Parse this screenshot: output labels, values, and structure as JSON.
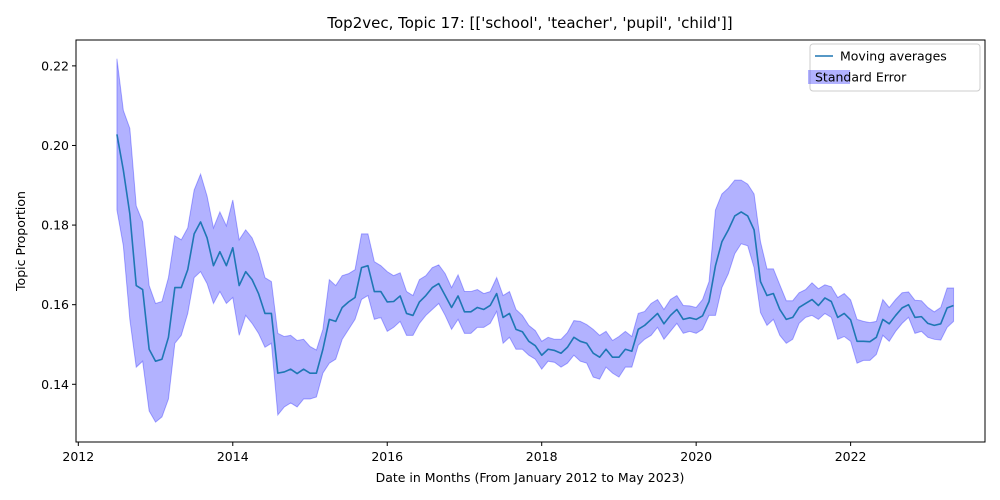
{
  "chart_data": {
    "type": "line",
    "title": "Top2vec, Topic 17: [['school', 'teacher', 'pupil', 'child']]",
    "xlabel": "Date in Months (From January 2012 to May 2023)",
    "ylabel": "Topic Proportion",
    "xlim": [
      2011.97,
      2023.74
    ],
    "ylim": [
      0.1255,
      0.2265
    ],
    "x_ticks": [
      2012,
      2014,
      2016,
      2018,
      2020,
      2022
    ],
    "y_ticks": [
      0.14,
      0.16,
      0.18,
      0.2,
      0.22
    ],
    "y_tick_labels": [
      "0.14",
      "0.16",
      "0.18",
      "0.20",
      "0.22"
    ],
    "legend_position": "top-right",
    "colors": {
      "line": "#1f77b4",
      "band": "#0000ff"
    },
    "series": [
      {
        "name": "Moving averages",
        "style": "line",
        "x": [
          2012.5,
          2012.583,
          2012.667,
          2012.75,
          2012.833,
          2012.917,
          2013.0,
          2013.083,
          2013.167,
          2013.25,
          2013.333,
          2013.417,
          2013.5,
          2013.583,
          2013.667,
          2013.75,
          2013.833,
          2013.917,
          2014.0,
          2014.083,
          2014.167,
          2014.25,
          2014.333,
          2014.417,
          2014.5,
          2014.583,
          2014.667,
          2014.75,
          2014.833,
          2014.917,
          2015.0,
          2015.083,
          2015.167,
          2015.25,
          2015.333,
          2015.417,
          2015.5,
          2015.583,
          2015.667,
          2015.75,
          2015.833,
          2015.917,
          2016.0,
          2016.083,
          2016.167,
          2016.25,
          2016.333,
          2016.417,
          2016.5,
          2016.583,
          2016.667,
          2016.75,
          2016.833,
          2016.917,
          2017.0,
          2017.083,
          2017.167,
          2017.25,
          2017.333,
          2017.417,
          2017.5,
          2017.583,
          2017.667,
          2017.75,
          2017.833,
          2017.917,
          2018.0,
          2018.083,
          2018.167,
          2018.25,
          2018.333,
          2018.417,
          2018.5,
          2018.583,
          2018.667,
          2018.75,
          2018.833,
          2018.917,
          2019.0,
          2019.083,
          2019.167,
          2019.25,
          2019.333,
          2019.417,
          2019.5,
          2019.583,
          2019.667,
          2019.75,
          2019.833,
          2019.917,
          2020.0,
          2020.083,
          2020.167,
          2020.25,
          2020.333,
          2020.417,
          2020.5,
          2020.583,
          2020.667,
          2020.75,
          2020.833,
          2020.917,
          2021.0,
          2021.083,
          2021.167,
          2021.25,
          2021.333,
          2021.417,
          2021.5,
          2021.583,
          2021.667,
          2021.75,
          2021.833,
          2021.917,
          2022.0,
          2022.083,
          2022.167,
          2022.25,
          2022.333,
          2022.417,
          2022.5,
          2022.583,
          2022.667,
          2022.75,
          2022.833,
          2022.917,
          2023.0,
          2023.083,
          2023.167,
          2023.25,
          2023.333
        ],
        "values": [
          0.2028,
          0.1938,
          0.1828,
          0.1648,
          0.1638,
          0.1488,
          0.1458,
          0.1463,
          0.1518,
          0.1643,
          0.1643,
          0.1688,
          0.1778,
          0.1808,
          0.1768,
          0.1698,
          0.1733,
          0.1698,
          0.1743,
          0.1648,
          0.1683,
          0.1663,
          0.1628,
          0.1578,
          0.1578,
          0.1428,
          0.1431,
          0.1438,
          0.1427,
          0.1438,
          0.1428,
          0.1428,
          0.1488,
          0.1563,
          0.1558,
          0.1593,
          0.1607,
          0.1618,
          0.1693,
          0.1698,
          0.1633,
          0.1633,
          0.1607,
          0.1608,
          0.1622,
          0.1578,
          0.1573,
          0.1607,
          0.1623,
          0.1643,
          0.1653,
          0.1623,
          0.1593,
          0.1622,
          0.1582,
          0.1582,
          0.1593,
          0.1588,
          0.1598,
          0.1628,
          0.1568,
          0.1578,
          0.1538,
          0.1532,
          0.1508,
          0.1497,
          0.1473,
          0.1488,
          0.1485,
          0.1478,
          0.1493,
          0.1518,
          0.1508,
          0.1503,
          0.1478,
          0.1468,
          0.1488,
          0.1468,
          0.1468,
          0.1488,
          0.1483,
          0.1538,
          0.1548,
          0.1563,
          0.1578,
          0.1552,
          0.1573,
          0.1588,
          0.1563,
          0.1567,
          0.1563,
          0.1572,
          0.1608,
          0.1698,
          0.1758,
          0.1788,
          0.1823,
          0.1833,
          0.1823,
          0.1788,
          0.1658,
          0.1623,
          0.1628,
          0.1588,
          0.1563,
          0.1568,
          0.1593,
          0.1603,
          0.1613,
          0.1598,
          0.1617,
          0.1608,
          0.1568,
          0.1578,
          0.1562,
          0.1508,
          0.1508,
          0.1507,
          0.1518,
          0.1563,
          0.1552,
          0.1573,
          0.1592,
          0.16,
          0.1568,
          0.157,
          0.1553,
          0.1548,
          0.1552,
          0.1592,
          0.1598
        ]
      },
      {
        "name": "Standard Error",
        "style": "band",
        "upper": [
          0.2218,
          0.2088,
          0.2043,
          0.1848,
          0.1808,
          0.1648,
          0.1603,
          0.1608,
          0.1668,
          0.1773,
          0.1763,
          0.1793,
          0.1888,
          0.1928,
          0.1873,
          0.1793,
          0.1833,
          0.1798,
          0.1863,
          0.1763,
          0.1788,
          0.1768,
          0.1728,
          0.1668,
          0.1658,
          0.1528,
          0.152,
          0.1523,
          0.151,
          0.1513,
          0.1495,
          0.1486,
          0.1538,
          0.1663,
          0.1648,
          0.1673,
          0.1678,
          0.1688,
          0.1778,
          0.1778,
          0.1708,
          0.1698,
          0.1683,
          0.1673,
          0.168,
          0.1633,
          0.1623,
          0.1663,
          0.1673,
          0.1693,
          0.17,
          0.1678,
          0.1643,
          0.1675,
          0.1633,
          0.1633,
          0.1638,
          0.1628,
          0.1633,
          0.1668,
          0.1623,
          0.1633,
          0.1588,
          0.1573,
          0.1548,
          0.1535,
          0.1508,
          0.1518,
          0.1513,
          0.1513,
          0.153,
          0.156,
          0.1558,
          0.155,
          0.1538,
          0.1523,
          0.1533,
          0.151,
          0.152,
          0.1533,
          0.152,
          0.1578,
          0.1583,
          0.1603,
          0.1613,
          0.1588,
          0.1613,
          0.1623,
          0.1598,
          0.1597,
          0.1593,
          0.1613,
          0.1658,
          0.1838,
          0.1878,
          0.1893,
          0.1913,
          0.1913,
          0.1903,
          0.1878,
          0.1758,
          0.169,
          0.169,
          0.165,
          0.161,
          0.161,
          0.163,
          0.1638,
          0.1655,
          0.164,
          0.165,
          0.1645,
          0.1618,
          0.1628,
          0.1612,
          0.1563,
          0.1558,
          0.1555,
          0.1558,
          0.1613,
          0.1593,
          0.1613,
          0.163,
          0.1632,
          0.1611,
          0.161,
          0.1593,
          0.1582,
          0.1593,
          0.1642,
          0.1642
        ],
        "lower": [
          0.1838,
          0.1748,
          0.1563,
          0.1443,
          0.1458,
          0.1333,
          0.1305,
          0.1318,
          0.1363,
          0.1503,
          0.1523,
          0.1578,
          0.1668,
          0.1683,
          0.1653,
          0.1603,
          0.1633,
          0.1603,
          0.1618,
          0.1523,
          0.1573,
          0.1553,
          0.1528,
          0.1493,
          0.1503,
          0.1323,
          0.1343,
          0.1353,
          0.1343,
          0.1363,
          0.1363,
          0.1368,
          0.1428,
          0.1453,
          0.1463,
          0.1513,
          0.1538,
          0.1563,
          0.1613,
          0.1623,
          0.1563,
          0.1568,
          0.1533,
          0.1543,
          0.1558,
          0.1523,
          0.1523,
          0.1553,
          0.1573,
          0.1588,
          0.1603,
          0.1573,
          0.1538,
          0.1563,
          0.1528,
          0.1528,
          0.1543,
          0.1543,
          0.1553,
          0.1583,
          0.1503,
          0.1518,
          0.1488,
          0.1488,
          0.1473,
          0.1463,
          0.1438,
          0.1458,
          0.1455,
          0.1443,
          0.1453,
          0.1473,
          0.1458,
          0.1453,
          0.1418,
          0.1413,
          0.1443,
          0.1428,
          0.1418,
          0.1443,
          0.1443,
          0.1498,
          0.1513,
          0.1523,
          0.1543,
          0.1513,
          0.1533,
          0.1553,
          0.1528,
          0.1533,
          0.1528,
          0.1538,
          0.1573,
          0.1573,
          0.1643,
          0.1678,
          0.1728,
          0.1753,
          0.1748,
          0.1693,
          0.158,
          0.1548,
          0.1563,
          0.1523,
          0.1503,
          0.1513,
          0.1553,
          0.1568,
          0.1573,
          0.1563,
          0.1578,
          0.1568,
          0.1513,
          0.152,
          0.1508,
          0.1453,
          0.146,
          0.146,
          0.1475,
          0.1523,
          0.1508,
          0.1533,
          0.1553,
          0.1568,
          0.1528,
          0.1533,
          0.1518,
          0.1513,
          0.1511,
          0.1543,
          0.1558
        ]
      }
    ]
  }
}
